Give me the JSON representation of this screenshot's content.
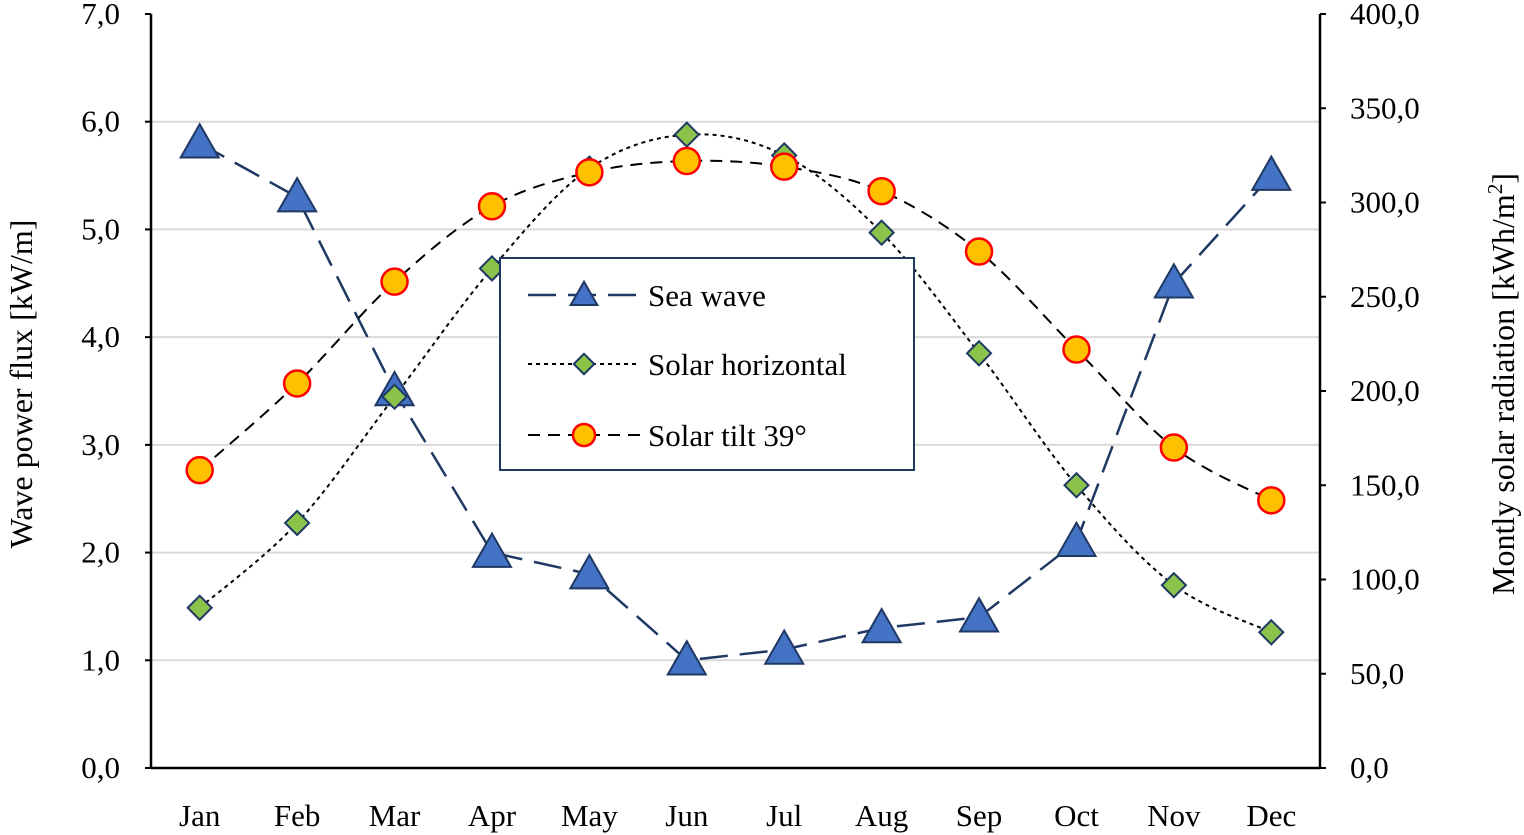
{
  "chart_data": {
    "type": "line",
    "title": "",
    "categories": [
      "Jan",
      "Feb",
      "Mar",
      "Apr",
      "May",
      "Jun",
      "Jul",
      "Aug",
      "Sep",
      "Oct",
      "Nov",
      "Dec"
    ],
    "y_left": {
      "label": "Wave power flux [kW/m]",
      "range": [
        0,
        7
      ],
      "ticks": [
        "0,0",
        "1,0",
        "2,0",
        "3,0",
        "4,0",
        "5,0",
        "6,0",
        "7,0"
      ]
    },
    "y_right": {
      "label_main": "Montly solar radiation [kWh/m",
      "label_sup": "2",
      "label_end": "]",
      "range": [
        0,
        400
      ],
      "ticks": [
        "0,0",
        "50,0",
        "100,0",
        "150,0",
        "200,0",
        "250,0",
        "300,0",
        "350,0",
        "400,0"
      ]
    },
    "grid": true,
    "legend_position": "center",
    "series": [
      {
        "name": "Sea wave",
        "axis": "left",
        "marker": "triangle",
        "line": "long-dash",
        "colors": {
          "line": "#1F3864",
          "fill": "#4472C4",
          "edge": "#1F3864"
        },
        "values": [
          5.8,
          5.3,
          3.5,
          2.0,
          1.8,
          1.0,
          1.1,
          1.3,
          1.4,
          2.1,
          4.5,
          5.5
        ]
      },
      {
        "name": "Solar horizontal",
        "axis": "right",
        "marker": "diamond",
        "line": "dotted",
        "colors": {
          "line": "#000000",
          "fill": "#8BC34A",
          "edge": "#1F3864"
        },
        "values": [
          85,
          130,
          197,
          265,
          318,
          336,
          325,
          284,
          220,
          150,
          97,
          72
        ]
      },
      {
        "name": "Solar tilt 39°",
        "axis": "right",
        "marker": "circle",
        "line": "dashed",
        "colors": {
          "line": "#000000",
          "fill": "#FFC000",
          "edge": "#FF0000"
        },
        "values": [
          158,
          204,
          258,
          298,
          316,
          322,
          319,
          306,
          274,
          222,
          170,
          142
        ]
      }
    ]
  }
}
